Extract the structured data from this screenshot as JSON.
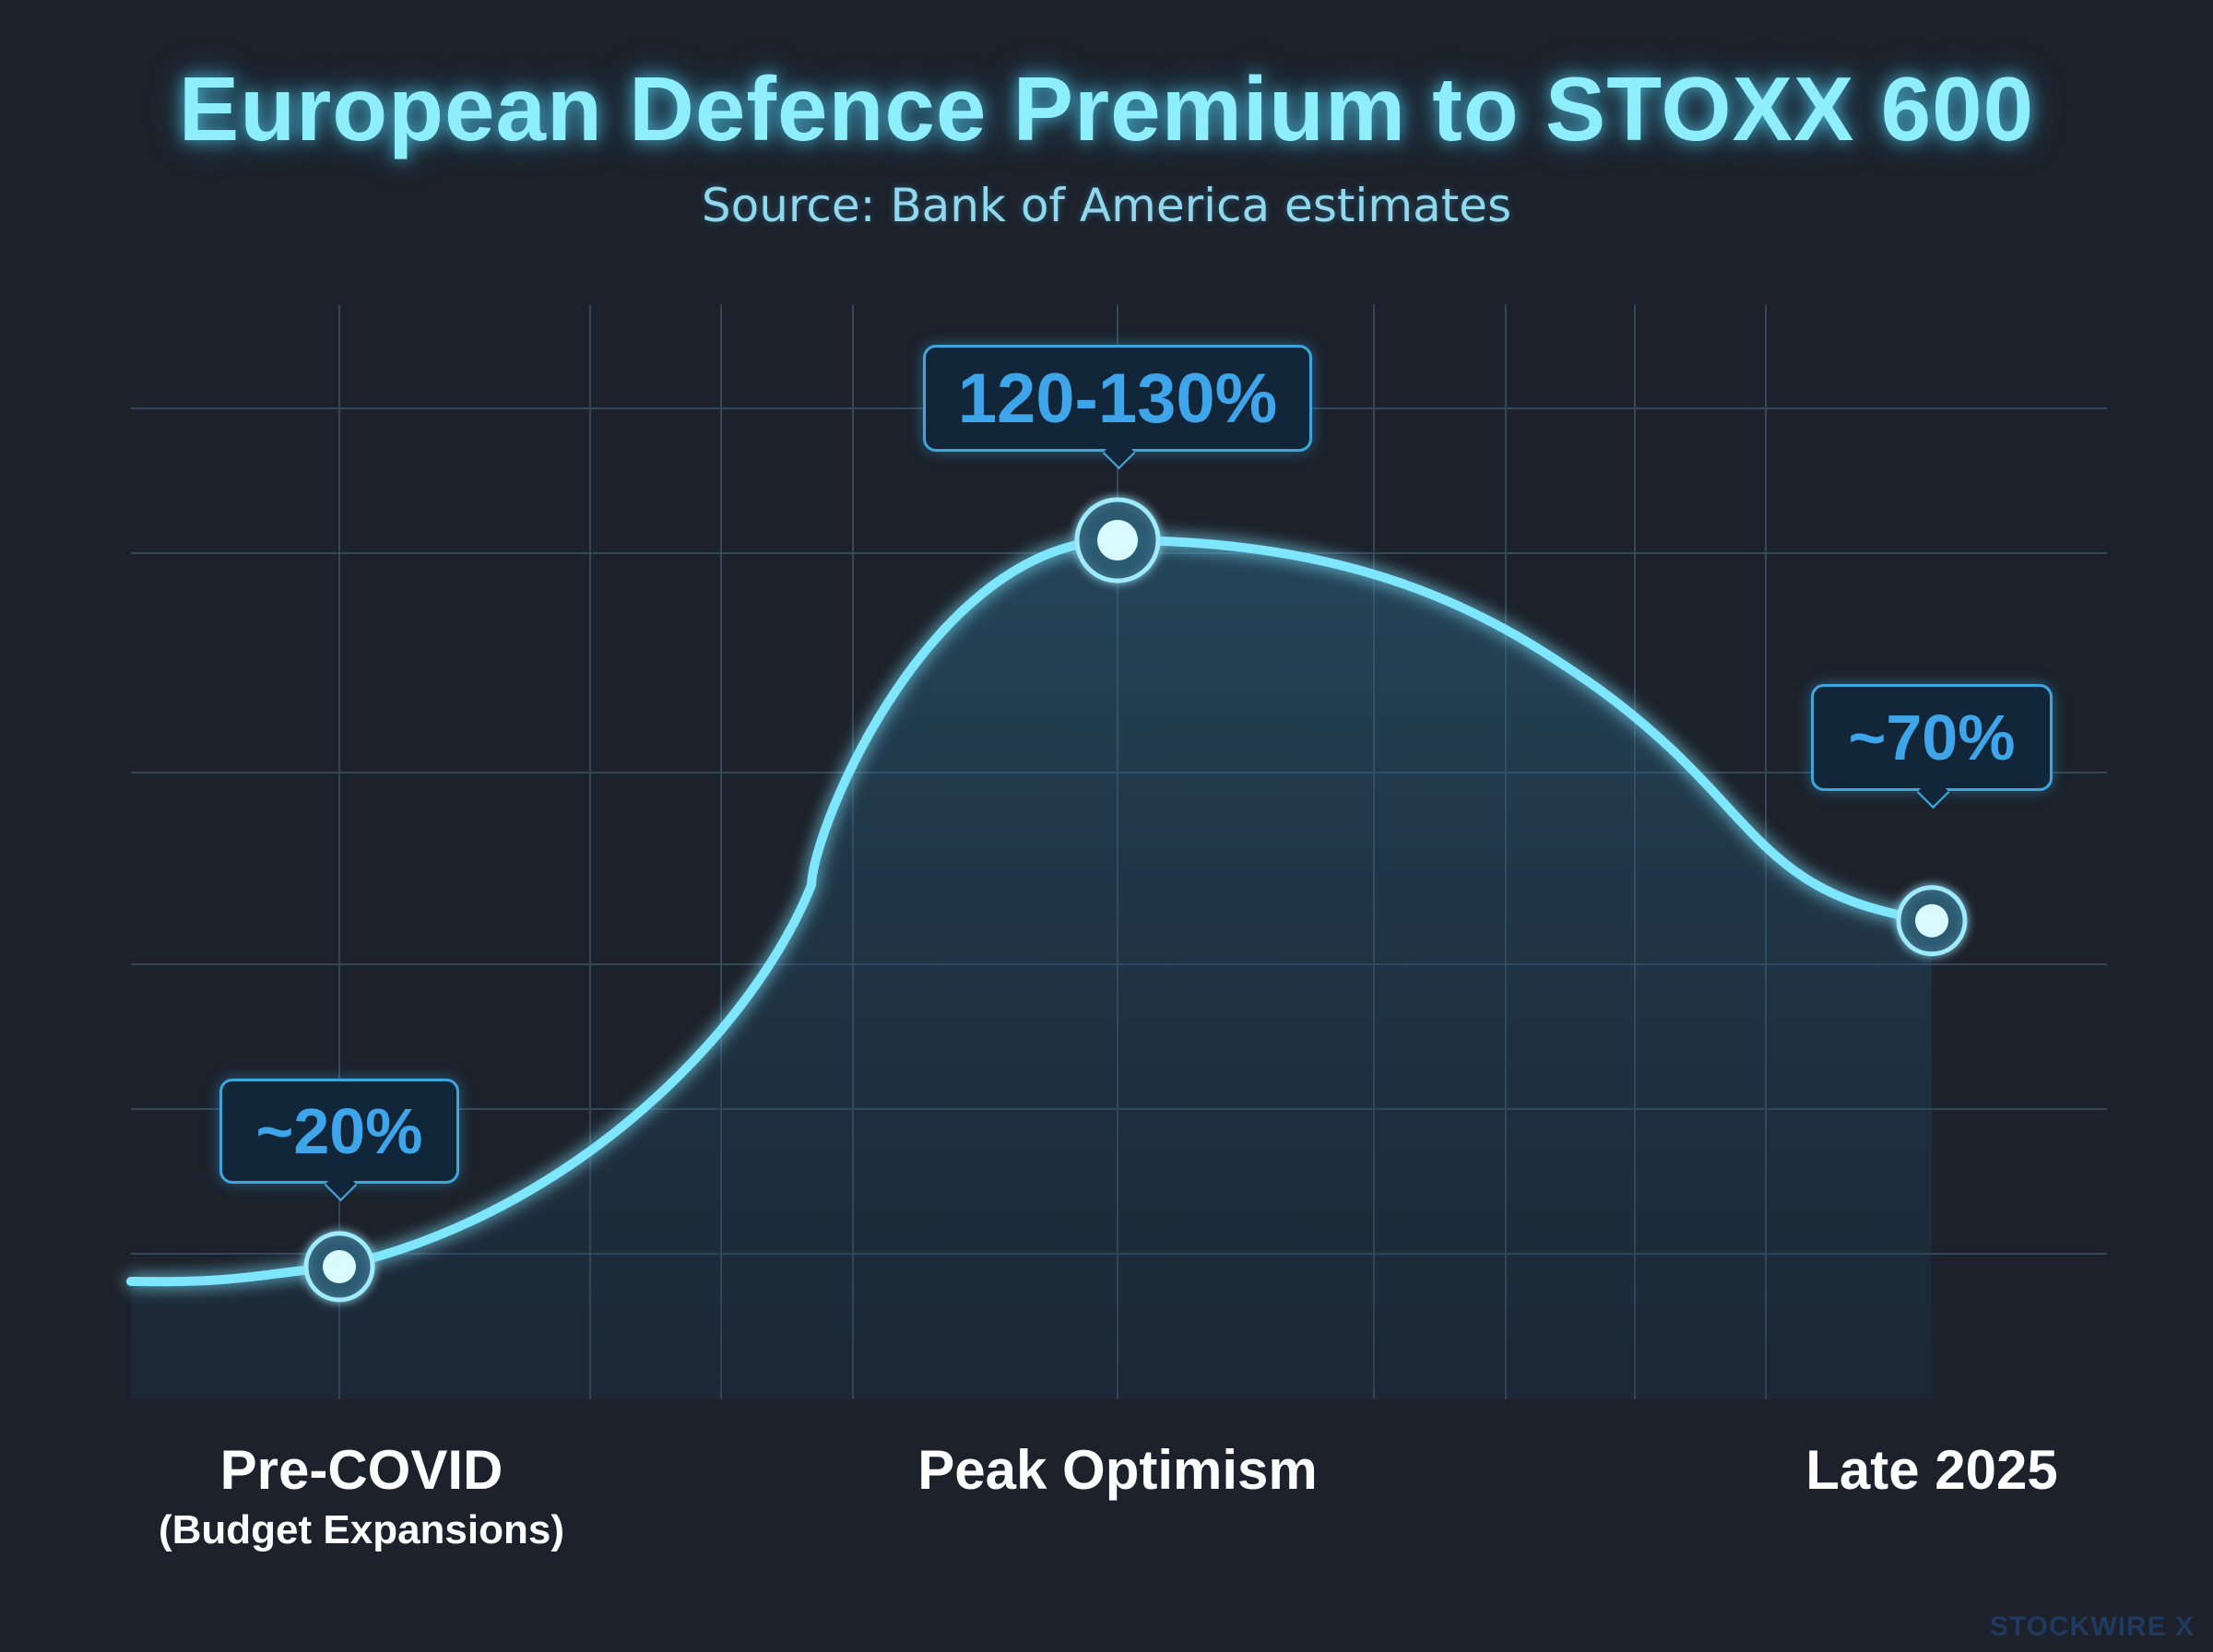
{
  "chart_data": {
    "type": "line",
    "title": "European Defence Premium to STOXX 600",
    "subtitle": "Source: Bank of America estimates",
    "grid": true,
    "series": [
      {
        "points": [
          {
            "category": "Pre-COVID",
            "sublabel": "(Budget Expansions)",
            "label": "~20%",
            "value": 20
          },
          {
            "category": "Peak Optimism",
            "sublabel": "",
            "label": "120-130%",
            "value": 125
          },
          {
            "category": "Late 2025",
            "sublabel": "",
            "label": "~70%",
            "value": 70
          }
        ]
      }
    ]
  },
  "colors": {
    "background": "#1c212b",
    "line": "#7fe6ff",
    "axis": "#6fdcff",
    "grid": "#33465a",
    "callout_text": "#3fa5ea"
  },
  "watermark": "STOCKWIRE X"
}
